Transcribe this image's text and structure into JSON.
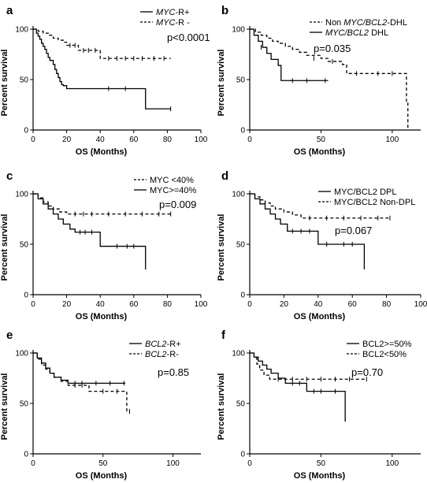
{
  "chart_data": [
    {
      "type": "line",
      "panel": "a",
      "xlabel": "OS (Months)",
      "ylabel": "Percent survival",
      "xlim": [
        0,
        100
      ],
      "ylim": [
        0,
        100
      ],
      "xticks": [
        "0",
        "20",
        "40",
        "60",
        "80",
        "100"
      ],
      "yticks": [
        "0",
        "50",
        "100"
      ],
      "pvalue": "p<0.0001",
      "series": [
        {
          "name_prefix": "MYC",
          "name_suffix": "-R+",
          "dash": "solid",
          "x": [
            0,
            2,
            3,
            4,
            5,
            6,
            7,
            8,
            9,
            10,
            12,
            13,
            14,
            15,
            16,
            17,
            18,
            20,
            67,
            82
          ],
          "y": [
            100,
            96,
            93,
            90,
            86,
            83,
            80,
            76,
            72,
            69,
            65,
            60,
            56,
            52,
            48,
            45,
            44,
            41,
            21,
            21
          ],
          "censor_x": [
            45,
            55,
            82
          ],
          "censor_y": [
            41,
            41,
            21
          ]
        },
        {
          "name_prefix": "MYC",
          "name_suffix": "-R -",
          "dash": "dashed",
          "x": [
            0,
            3,
            6,
            9,
            12,
            15,
            18,
            20,
            27,
            40,
            82
          ],
          "y": [
            100,
            98,
            96,
            94,
            91,
            89,
            87,
            84,
            79,
            71,
            71
          ],
          "censor_x": [
            22,
            25,
            30,
            33,
            37,
            45,
            50,
            55,
            60,
            65,
            72,
            78
          ],
          "censor_y": [
            84,
            84,
            79,
            79,
            79,
            71,
            71,
            71,
            71,
            71,
            71,
            71
          ]
        }
      ]
    },
    {
      "type": "line",
      "panel": "b",
      "xlabel": "OS (Months)",
      "ylabel": "Percent survival",
      "xlim": [
        0,
        120
      ],
      "ylim": [
        0,
        100
      ],
      "xticks": [
        "0",
        "50",
        "100"
      ],
      "yticks": [
        "0",
        "50",
        "100"
      ],
      "pvalue": "p=0.035",
      "series": [
        {
          "name_prefix": "Non ",
          "name_italic": "MYC/BCL2",
          "name_suffix": "-DHL",
          "dash": "dashed",
          "x": [
            0,
            4,
            8,
            12,
            16,
            20,
            25,
            30,
            35,
            40,
            50,
            55,
            65,
            68,
            108,
            110,
            111
          ],
          "y": [
            100,
            97,
            94,
            91,
            88,
            86,
            83,
            80,
            77,
            74,
            71,
            68,
            65,
            56,
            56,
            28,
            0
          ],
          "censor_x": [
            45,
            58,
            75,
            90,
            100
          ],
          "censor_y": [
            71,
            68,
            56,
            56,
            56
          ]
        },
        {
          "name_prefix": "",
          "name_italic": "MYC/BCL2",
          "name_suffix": " DHL",
          "dash": "solid",
          "x": [
            0,
            3,
            6,
            9,
            12,
            15,
            20,
            22,
            55
          ],
          "y": [
            100,
            94,
            88,
            82,
            76,
            70,
            64,
            49,
            49
          ],
          "censor_x": [
            8,
            30,
            40,
            53
          ],
          "censor_y": [
            82,
            49,
            49,
            49
          ]
        }
      ]
    },
    {
      "type": "line",
      "panel": "c",
      "xlabel": "OS (Months)",
      "ylabel": "Percent survival",
      "xlim": [
        0,
        100
      ],
      "ylim": [
        0,
        100
      ],
      "xticks": [
        "0",
        "20",
        "40",
        "60",
        "80",
        "100"
      ],
      "yticks": [
        "0",
        "50",
        "100"
      ],
      "pvalue": "p=0.009",
      "series": [
        {
          "name": "MYC <40%",
          "dash": "dashed",
          "x": [
            0,
            3,
            6,
            9,
            12,
            16,
            20,
            82
          ],
          "y": [
            100,
            96,
            92,
            88,
            85,
            82,
            80,
            80
          ],
          "censor_x": [
            25,
            30,
            35,
            45,
            55,
            65,
            75,
            82
          ],
          "censor_y": [
            80,
            80,
            80,
            80,
            80,
            80,
            80,
            80
          ]
        },
        {
          "name": "MYC>=40%",
          "dash": "solid",
          "x": [
            0,
            3,
            6,
            9,
            12,
            15,
            18,
            22,
            25,
            40,
            66,
            67
          ],
          "y": [
            100,
            95,
            90,
            85,
            80,
            75,
            70,
            65,
            62,
            48,
            48,
            25
          ],
          "censor_x": [
            28,
            31,
            35,
            50,
            56,
            60
          ],
          "censor_y": [
            62,
            62,
            62,
            48,
            48,
            48
          ]
        }
      ]
    },
    {
      "type": "line",
      "panel": "d",
      "xlabel": "OS (Months)",
      "ylabel": "Percent survival",
      "xlim": [
        0,
        100
      ],
      "ylim": [
        0,
        100
      ],
      "xticks": [
        "0",
        "20",
        "40",
        "60",
        "80",
        "100"
      ],
      "yticks": [
        "0",
        "50",
        "100"
      ],
      "pvalue": "p=0.067",
      "series": [
        {
          "name": "MYC/BCL2 DPL",
          "dash": "solid",
          "x": [
            0,
            3,
            6,
            9,
            12,
            15,
            18,
            22,
            40,
            66,
            67
          ],
          "y": [
            100,
            95,
            90,
            85,
            80,
            75,
            70,
            63,
            50,
            50,
            25
          ],
          "censor_x": [
            25,
            30,
            35,
            45,
            55,
            60
          ],
          "censor_y": [
            63,
            63,
            63,
            50,
            50,
            50
          ]
        },
        {
          "name": "MYC/BCL2 Non-DPL",
          "dash": "dashed",
          "x": [
            0,
            3,
            6,
            9,
            12,
            15,
            20,
            25,
            30,
            82
          ],
          "y": [
            100,
            97,
            94,
            91,
            88,
            85,
            82,
            79,
            76,
            76
          ],
          "censor_x": [
            35,
            45,
            55,
            65,
            75,
            82
          ],
          "censor_y": [
            76,
            76,
            76,
            76,
            76,
            76
          ]
        }
      ]
    },
    {
      "type": "line",
      "panel": "e",
      "xlabel": "OS (Months)",
      "ylabel": "Percent survival",
      "xlim": [
        0,
        120
      ],
      "ylim": [
        0,
        100
      ],
      "xticks": [
        "0",
        "50",
        "100"
      ],
      "yticks": [
        "0",
        "50",
        "100"
      ],
      "pvalue": "p=0.85",
      "series": [
        {
          "name_prefix": "BCL2",
          "name_suffix": "-R+",
          "dash": "solid",
          "x": [
            0,
            3,
            6,
            9,
            12,
            15,
            20,
            25,
            66
          ],
          "y": [
            100,
            95,
            90,
            85,
            80,
            76,
            73,
            70,
            70
          ],
          "censor_x": [
            30,
            35,
            45,
            55,
            65
          ],
          "censor_y": [
            70,
            70,
            70,
            70,
            70
          ]
        },
        {
          "name_prefix": "BCL2",
          "name_suffix": "-R-",
          "dash": "dashed",
          "x": [
            0,
            3,
            6,
            9,
            12,
            15,
            20,
            25,
            40,
            66,
            67,
            69
          ],
          "y": [
            100,
            94,
            88,
            84,
            80,
            76,
            72,
            68,
            62,
            62,
            42,
            42
          ],
          "censor_x": [
            30,
            35,
            50,
            60,
            69
          ],
          "censor_y": [
            68,
            68,
            62,
            62,
            42
          ]
        }
      ]
    },
    {
      "type": "line",
      "panel": "f",
      "xlabel": "OS (Months)",
      "ylabel": "Percent survival",
      "xlim": [
        0,
        120
      ],
      "ylim": [
        0,
        100
      ],
      "xticks": [
        "0",
        "50",
        "100"
      ],
      "yticks": [
        "0",
        "50",
        "100"
      ],
      "pvalue": "p=0.70",
      "series": [
        {
          "name": "BCL2>=50%",
          "dash": "solid",
          "x": [
            0,
            3,
            6,
            9,
            12,
            15,
            20,
            25,
            40,
            66,
            67
          ],
          "y": [
            100,
            96,
            92,
            88,
            84,
            80,
            75,
            70,
            62,
            62,
            32
          ],
          "censor_x": [
            30,
            35,
            45,
            50,
            60
          ],
          "censor_y": [
            70,
            70,
            62,
            62,
            62
          ]
        },
        {
          "name": "BCL2<50%",
          "dash": "dashed",
          "x": [
            0,
            3,
            5,
            7,
            10,
            14,
            82
          ],
          "y": [
            100,
            95,
            89,
            83,
            78,
            74,
            74
          ],
          "censor_x": [
            20,
            30,
            40,
            50,
            60,
            70,
            82
          ],
          "censor_y": [
            74,
            74,
            74,
            74,
            74,
            74,
            74
          ]
        }
      ]
    }
  ]
}
